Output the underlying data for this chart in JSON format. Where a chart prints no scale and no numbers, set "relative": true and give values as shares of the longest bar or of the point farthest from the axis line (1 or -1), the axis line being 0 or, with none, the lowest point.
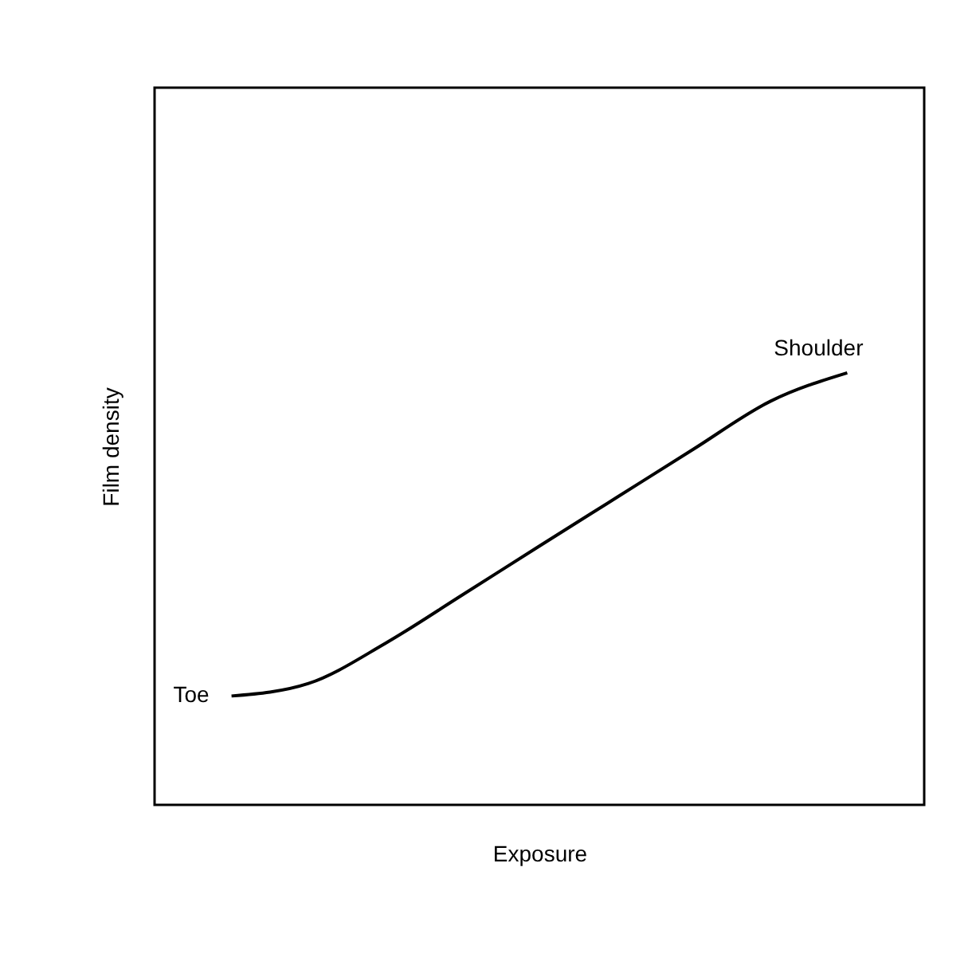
{
  "chart_data": {
    "type": "line",
    "relative": true,
    "xlabel": "Exposure",
    "ylabel": "Film density",
    "categories": [
      null,
      null,
      null,
      null,
      null,
      null,
      null,
      null,
      null
    ],
    "series": [
      {
        "color": "#000000",
        "values": [
          0.252,
          0.281,
          0.374,
          0.486,
          0.599,
          0.711,
          0.823,
          0.934,
          1
        ]
      }
    ],
    "annotations": [
      "Toe",
      "Shoulder"
    ],
    "marker": "none",
    "line_style": "solid"
  }
}
